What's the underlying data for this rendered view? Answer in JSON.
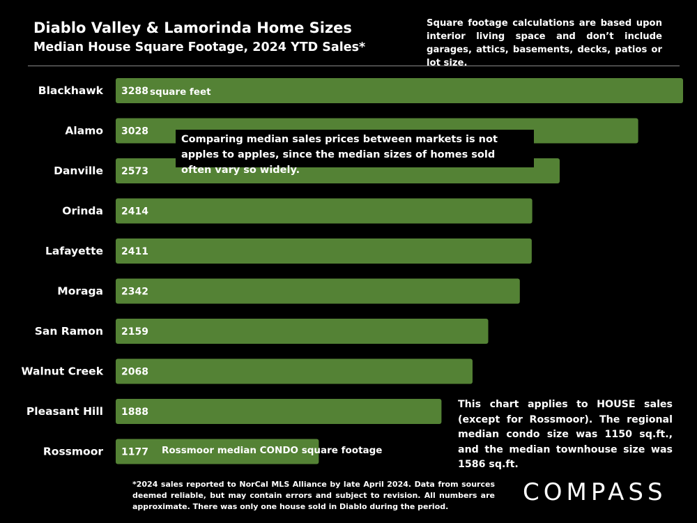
{
  "title": "Diablo Valley & Lamorinda Home Sizes",
  "subtitle": "Median House Square Footage, 2024 YTD Sales*",
  "note_top": "Square footage calculations are based upon interior living space and don’t include garages, attics, basements, decks, patios or lot size.",
  "unit_label": "square feet",
  "callout": "Comparing median sales prices between markets is not apples to apples, since the median sizes of homes sold often vary so widely.",
  "condo_label": "Rossmoor median CONDO square footage",
  "note_right": "This chart applies to HOUSE sales (except for Rossmoor). The regional median condo size was 1150 sq.ft., and the median townhouse size was 1586 sq.ft.",
  "footnote": "*2024 sales reported to NorCal MLS Alliance by late April 2024. Data from sources deemed reliable, but may contain errors and subject to revision. All numbers are approximate. There was only one house sold in Diablo during the period.",
  "logo": "COMPASS",
  "colors": {
    "bar": "#548235",
    "background": "#000000",
    "text": "#ffffff"
  },
  "chart_data": {
    "type": "bar",
    "orientation": "horizontal",
    "categories": [
      "Blackhawk",
      "Alamo",
      "Danville",
      "Orinda",
      "Lafayette",
      "Moraga",
      "San Ramon",
      "Walnut Creek",
      "Pleasant Hill",
      "Rossmoor"
    ],
    "values": [
      3288,
      3028,
      2573,
      2414,
      2411,
      2342,
      2159,
      2068,
      1888,
      1177
    ],
    "title": "Diablo Valley & Lamorinda Home Sizes",
    "subtitle": "Median House Square Footage, 2024 YTD Sales*",
    "xlim": [
      0,
      3288
    ],
    "grid": false,
    "legend": "none"
  }
}
